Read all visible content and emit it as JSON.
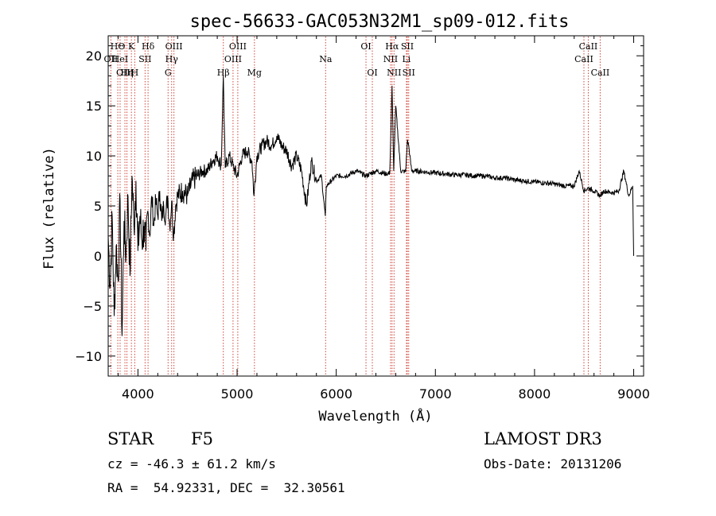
{
  "chart_data": {
    "type": "line",
    "title": "spec-56633-GAC053N32M1_sp09-012.fits",
    "xlabel": "Wavelength (Å)",
    "ylabel": "Flux (relative)",
    "xlim": [
      3700,
      9100
    ],
    "ylim": [
      -12,
      22
    ],
    "xticks": [
      4000,
      5000,
      6000,
      7000,
      8000,
      9000
    ],
    "yticks": [
      -10,
      -5,
      0,
      5,
      10,
      15,
      20
    ],
    "line_color": "#d0453a",
    "series": [
      {
        "name": "flux",
        "x": [
          3700,
          3720,
          3740,
          3760,
          3780,
          3800,
          3820,
          3840,
          3860,
          3880,
          3900,
          3920,
          3940,
          3960,
          3980,
          4000,
          4020,
          4040,
          4060,
          4080,
          4100,
          4120,
          4140,
          4160,
          4180,
          4200,
          4220,
          4240,
          4260,
          4280,
          4300,
          4320,
          4340,
          4360,
          4380,
          4400,
          4450,
          4500,
          4550,
          4600,
          4650,
          4700,
          4750,
          4800,
          4840,
          4861,
          4880,
          4920,
          4960,
          5000,
          5050,
          5100,
          5150,
          5170,
          5200,
          5250,
          5300,
          5350,
          5400,
          5450,
          5500,
          5550,
          5600,
          5650,
          5700,
          5750,
          5800,
          5850,
          5890,
          5900,
          5950,
          6000,
          6100,
          6200,
          6300,
          6400,
          6500,
          6540,
          6563,
          6580,
          6600,
          6650,
          6700,
          6717,
          6731,
          6760,
          6800,
          6900,
          7000,
          7100,
          7200,
          7300,
          7400,
          7500,
          7600,
          7700,
          7800,
          7900,
          8000,
          8100,
          8200,
          8300,
          8400,
          8450,
          8498,
          8542,
          8600,
          8662,
          8700,
          8800,
          8850,
          8900,
          8950,
          8990,
          9000
        ],
        "y": [
          2.0,
          -3.0,
          4.0,
          -6.0,
          1.0,
          -2.5,
          5.5,
          -8.0,
          3.5,
          0.0,
          6.0,
          -2.0,
          8.0,
          3.0,
          7.5,
          0.5,
          4.0,
          1.5,
          3.0,
          0.5,
          4.5,
          2.0,
          6.0,
          3.0,
          5.5,
          4.0,
          6.5,
          3.5,
          5.0,
          4.0,
          6.0,
          3.0,
          5.5,
          2.0,
          5.0,
          6.0,
          6.5,
          6.0,
          7.5,
          8.0,
          8.5,
          8.5,
          9.5,
          10.0,
          9.0,
          18.0,
          8.8,
          10.0,
          9.0,
          8.0,
          10.0,
          10.5,
          9.5,
          6.0,
          10.0,
          11.0,
          11.5,
          11.0,
          12.0,
          11.0,
          10.5,
          9.0,
          10.0,
          8.5,
          5.0,
          9.5,
          7.5,
          8.0,
          4.0,
          7.0,
          7.5,
          8.0,
          8.0,
          8.5,
          8.0,
          8.5,
          8.2,
          8.3,
          17.0,
          8.5,
          15.0,
          8.5,
          8.4,
          11.5,
          11.0,
          8.5,
          8.5,
          8.4,
          8.3,
          8.2,
          8.1,
          8.1,
          8.0,
          8.0,
          7.8,
          7.8,
          7.6,
          7.5,
          7.4,
          7.3,
          7.2,
          7.0,
          7.0,
          8.5,
          6.5,
          6.8,
          6.5,
          6.0,
          6.5,
          6.3,
          6.5,
          8.5,
          6.0,
          7.0,
          0.0
        ]
      }
    ],
    "lines": [
      {
        "label": "HΘ",
        "wavelength": 3797,
        "row": 1
      },
      {
        "label": "OII",
        "wavelength": 3727,
        "row": 2
      },
      {
        "label": "HeI",
        "wavelength": 3820,
        "row": 2
      },
      {
        "label": "OIII",
        "wavelength": 3869,
        "row": 3
      },
      {
        "label": "Hη",
        "wavelength": 3889,
        "row": 3
      },
      {
        "label": "K",
        "wavelength": 3934,
        "row": 1
      },
      {
        "label": "H",
        "wavelength": 3968,
        "row": 3
      },
      {
        "label": "SII",
        "wavelength": 4072,
        "row": 2
      },
      {
        "label": "Hδ",
        "wavelength": 4102,
        "row": 1
      },
      {
        "label": "OIII",
        "wavelength": 4363,
        "row": 1
      },
      {
        "label": "Hγ",
        "wavelength": 4340,
        "row": 2
      },
      {
        "label": "G",
        "wavelength": 4304,
        "row": 3
      },
      {
        "label": "Hβ",
        "wavelength": 4861,
        "row": 3
      },
      {
        "label": "OIII",
        "wavelength": 5007,
        "row": 1
      },
      {
        "label": "OIII",
        "wavelength": 4959,
        "row": 2
      },
      {
        "label": "Mg",
        "wavelength": 5175,
        "row": 3
      },
      {
        "label": "Na",
        "wavelength": 5893,
        "row": 2
      },
      {
        "label": "OI",
        "wavelength": 6300,
        "row": 1
      },
      {
        "label": "OI",
        "wavelength": 6364,
        "row": 3
      },
      {
        "label": "Hα",
        "wavelength": 6563,
        "row": 1
      },
      {
        "label": "NII",
        "wavelength": 6548,
        "row": 2
      },
      {
        "label": "NII",
        "wavelength": 6583,
        "row": 3
      },
      {
        "label": "SII",
        "wavelength": 6717,
        "row": 1
      },
      {
        "label": "Li",
        "wavelength": 6708,
        "row": 2
      },
      {
        "label": "SII",
        "wavelength": 6731,
        "row": 3
      },
      {
        "label": "CaII",
        "wavelength": 8542,
        "row": 1
      },
      {
        "label": "CaII",
        "wavelength": 8498,
        "row": 2
      },
      {
        "label": "CaII",
        "wavelength": 8662,
        "row": 3
      }
    ]
  },
  "footer": {
    "class_label": "STAR",
    "subclass": "F5",
    "cz": "cz = -46.3 ± 61.2 km/s",
    "coords": "RA =  54.92331, DEC =  32.30561",
    "survey": "LAMOST DR3",
    "obs_date": "Obs-Date: 20131206"
  }
}
